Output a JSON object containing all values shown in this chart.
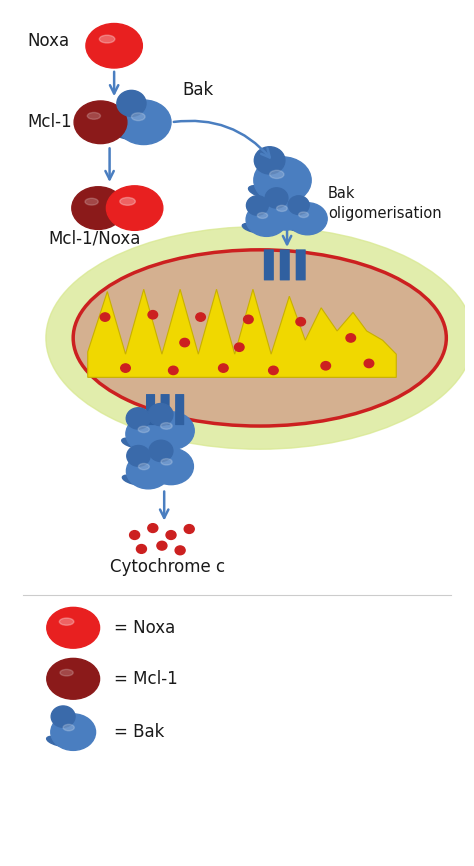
{
  "background_color": "#ffffff",
  "noxa_color": "#e82020",
  "mcl1_color": "#8b1a1a",
  "bak_color": "#4a7ec0",
  "bak_dark_color": "#3a6aaa",
  "bak_stem_color": "#3060a0",
  "cytc_color": "#cc2020",
  "arrow_color": "#4a7ec0",
  "mito_outer_color": "#d4b090",
  "mito_inner_color": "#f0d800",
  "mito_border_color": "#cc2020",
  "mito_glow_color": "#d8e890",
  "text_color": "#1a1a1a",
  "labels": {
    "noxa": "Noxa",
    "mcl1": "Mcl-1",
    "bak": "Bak",
    "mcl1noxa": "Mcl-1/Noxa",
    "bak_oligo": "Bak\noligomerisation",
    "cytc": "Cytochrome c",
    "legend_noxa": "= Noxa",
    "legend_mcl1": "= Mcl-1",
    "legend_bak": "= Bak"
  }
}
